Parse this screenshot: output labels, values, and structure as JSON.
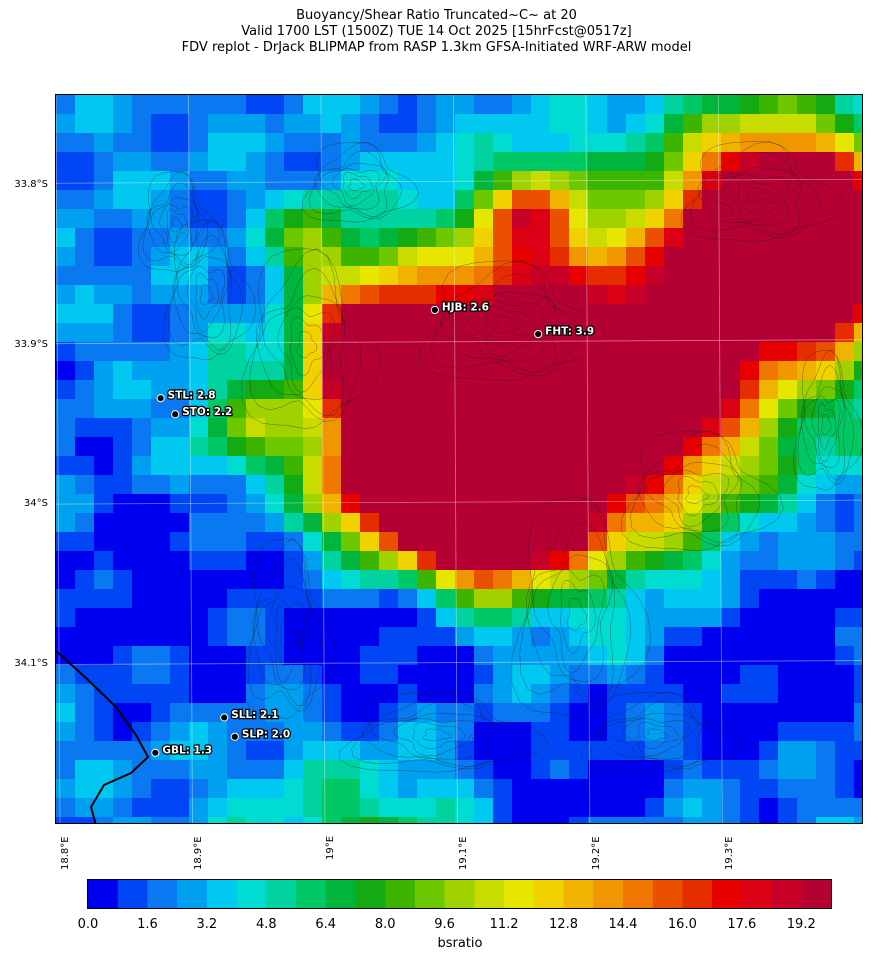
{
  "title": {
    "line1": "Buoyancy/Shear Ratio Truncated~C~    at 20",
    "line2": "Valid 1700 LST (1500Z) TUE 14 Oct 2025 [15hrFcst@0517z]",
    "line3": "FDV replot - DrJack BLIPMAP from RASP 1.3km GFSA-Initiated WRF-ARW model"
  },
  "axes": {
    "lat_labels": [
      "33.8°S",
      "33.9°S",
      "34°S",
      "34.1°S"
    ],
    "lon_labels": [
      "18.8°E",
      "18.9°E",
      "19°E",
      "19.1°E",
      "19.2°E",
      "19.3°E"
    ],
    "lat_range": [
      -34.2,
      -33.745
    ],
    "lon_range": [
      18.8,
      19.41
    ],
    "grid": true
  },
  "stations": [
    {
      "id": "HJB",
      "label": "HJB: 2.6",
      "lon": 19.086,
      "lat": -33.879
    },
    {
      "id": "FHT",
      "label": "FHT: 3.9",
      "lon": 19.164,
      "lat": -33.894
    },
    {
      "id": "STL",
      "label": "STL: 2.8",
      "lon": 18.879,
      "lat": -33.934
    },
    {
      "id": "STO",
      "label": "STO: 2.2",
      "lon": 18.89,
      "lat": -33.944
    },
    {
      "id": "SLL",
      "label": "SLL: 2.1",
      "lon": 18.927,
      "lat": -34.133
    },
    {
      "id": "SLP",
      "label": "SLP: 2.0",
      "lon": 18.935,
      "lat": -34.145
    },
    {
      "id": "GBL",
      "label": "GBL: 1.3",
      "lon": 18.875,
      "lat": -34.155
    }
  ],
  "colorbar": {
    "label": "bsratio",
    "ticks": [
      "0.0",
      "1.6",
      "3.2",
      "4.8",
      "6.4",
      "8.0",
      "9.6",
      "11.2",
      "12.8",
      "14.4",
      "16.0",
      "17.6",
      "19.2"
    ],
    "min": 0,
    "max": 20,
    "colors": [
      "#0000f0",
      "#0046f5",
      "#0a78f0",
      "#00a0f0",
      "#00c8f0",
      "#00dcd2",
      "#00d2a0",
      "#00c864",
      "#00b43c",
      "#14aa14",
      "#3cb400",
      "#6ec800",
      "#a0d200",
      "#c8dc00",
      "#e6e600",
      "#f0d200",
      "#f0b400",
      "#f09600",
      "#f07800",
      "#eb5000",
      "#e62d00",
      "#e60000",
      "#dc0014",
      "#c80028",
      "#b40032"
    ]
  },
  "colors": {
    "background_field": "#0a6fd8",
    "coastline": "#000000",
    "contours": "#1a1a1a"
  }
}
